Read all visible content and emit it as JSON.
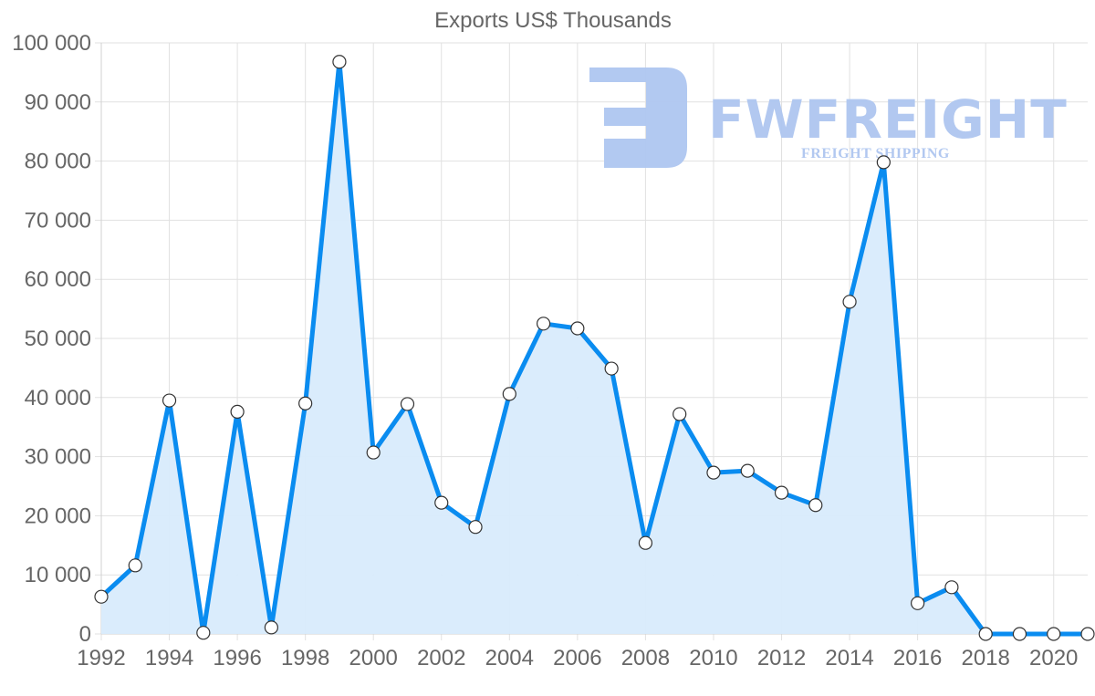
{
  "chart_data": {
    "type": "line",
    "title": "Exports US$ Thousands",
    "xlabel": "",
    "ylabel": "",
    "x": [
      1992,
      1993,
      1994,
      1995,
      1996,
      1997,
      1998,
      1999,
      2000,
      2001,
      2002,
      2003,
      2004,
      2005,
      2006,
      2007,
      2008,
      2009,
      2010,
      2011,
      2012,
      2013,
      2014,
      2015,
      2016,
      2017,
      2018,
      2019,
      2020,
      2021
    ],
    "series": [
      {
        "name": "Exports US$ Thousands",
        "values": [
          6300,
          11600,
          39500,
          200,
          37600,
          1100,
          39000,
          96800,
          30700,
          38900,
          22200,
          18100,
          40600,
          52500,
          51700,
          44900,
          15400,
          37200,
          27300,
          27600,
          23900,
          21800,
          56200,
          79800,
          5200,
          7900,
          0,
          0,
          0,
          0
        ]
      }
    ],
    "ylim": [
      0,
      100000
    ],
    "yticks": [
      0,
      10000,
      20000,
      30000,
      40000,
      50000,
      60000,
      70000,
      80000,
      90000,
      100000
    ],
    "ytick_labels": [
      "0",
      "10 000",
      "20 000",
      "30 000",
      "40 000",
      "50 000",
      "60 000",
      "70 000",
      "80 000",
      "90 000",
      "100 000"
    ],
    "xticks": [
      1992,
      1994,
      1996,
      1998,
      2000,
      2002,
      2004,
      2006,
      2008,
      2010,
      2012,
      2014,
      2016,
      2018,
      2020
    ],
    "xtick_labels": [
      "1992",
      "1994",
      "1996",
      "1998",
      "2000",
      "2002",
      "2004",
      "2006",
      "2008",
      "2010",
      "2012",
      "2014",
      "2016",
      "2018",
      "2020"
    ],
    "grid": true,
    "legend": "none",
    "filled_area": true
  },
  "colors": {
    "line": "#0a8cf0",
    "fill": "#d8ebfc",
    "marker_fill": "#ffffff",
    "marker_stroke": "#333333",
    "text": "#666666",
    "watermark": "#aec6f0"
  },
  "watermark": {
    "brand": "FWFREIGHT",
    "tagline": "FREIGHT SHIPPING"
  }
}
